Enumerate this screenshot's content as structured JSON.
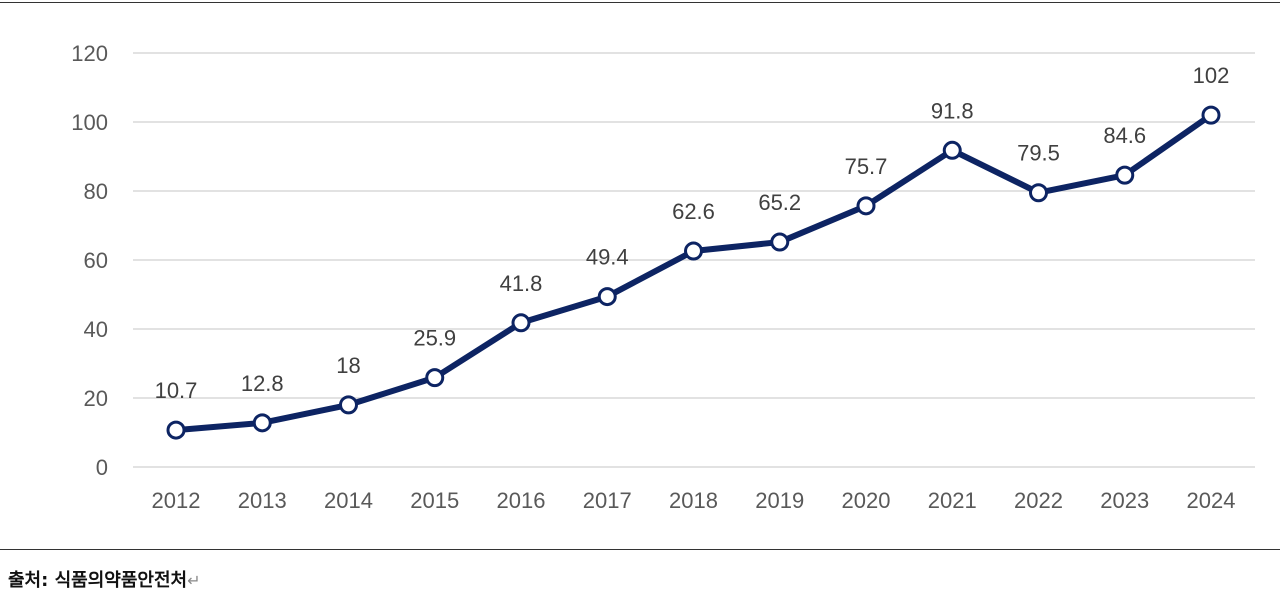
{
  "chart_data": {
    "type": "line",
    "categories": [
      "2012",
      "2013",
      "2014",
      "2015",
      "2016",
      "2017",
      "2018",
      "2019",
      "2020",
      "2021",
      "2022",
      "2023",
      "2024"
    ],
    "values": [
      10.7,
      12.8,
      18,
      25.9,
      41.8,
      49.4,
      62.6,
      65.2,
      75.7,
      91.8,
      79.5,
      84.6,
      102
    ],
    "data_labels": [
      "10.7",
      "12.8",
      "18",
      "25.9",
      "41.8",
      "49.4",
      "62.6",
      "65.2",
      "75.7",
      "91.8",
      "79.5",
      "84.6",
      "102"
    ],
    "y_ticks": [
      "0",
      "20",
      "40",
      "60",
      "80",
      "100",
      "120"
    ],
    "ylim": [
      0,
      120
    ],
    "grid": true,
    "line_color": "#0d2463",
    "marker_fill": "#ffffff",
    "gridline_color": "#d9d9d9"
  },
  "source": {
    "text": "출처: 식품의약품안전처",
    "return_symbol": "↵"
  }
}
